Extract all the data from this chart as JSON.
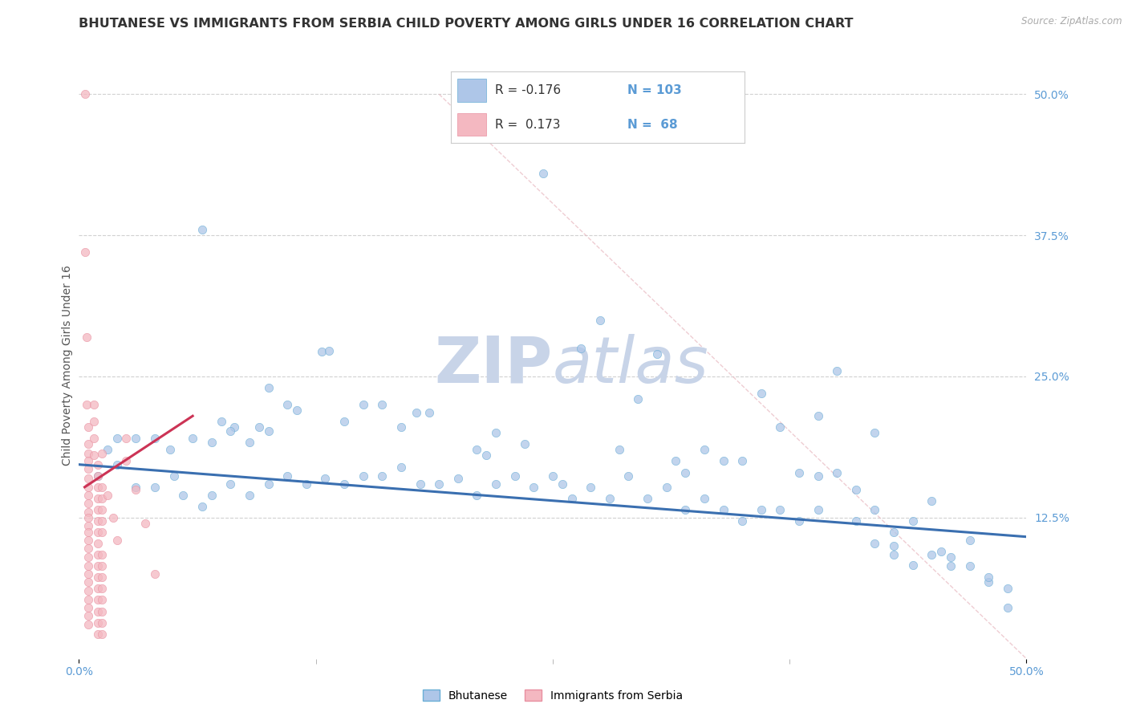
{
  "title": "BHUTANESE VS IMMIGRANTS FROM SERBIA CHILD POVERTY AMONG GIRLS UNDER 16 CORRELATION CHART",
  "source": "Source: ZipAtlas.com",
  "ylabel": "Child Poverty Among Girls Under 16",
  "xlim": [
    0.0,
    0.5
  ],
  "ylim": [
    0.0,
    0.52
  ],
  "xtick_vals": [
    0.0,
    0.5
  ],
  "xticklabels": [
    "0.0%",
    "50.0%"
  ],
  "ytick_vals": [
    0.125,
    0.25,
    0.375,
    0.5
  ],
  "yticklabels": [
    "12.5%",
    "25.0%",
    "37.5%",
    "50.0%"
  ],
  "legend_entries": [
    {
      "label": "Bhutanese",
      "color": "#aec6e8",
      "R": "-0.176",
      "N": "103"
    },
    {
      "label": "Immigrants from Serbia",
      "color": "#f4b8c1",
      "R": "0.173",
      "N": "68"
    }
  ],
  "watermark_zip": "ZIP",
  "watermark_atlas": "atlas",
  "blue_scatter": [
    [
      0.015,
      0.185
    ],
    [
      0.02,
      0.195
    ],
    [
      0.03,
      0.195
    ],
    [
      0.04,
      0.195
    ],
    [
      0.048,
      0.185
    ],
    [
      0.06,
      0.195
    ],
    [
      0.075,
      0.21
    ],
    [
      0.082,
      0.205
    ],
    [
      0.095,
      0.205
    ],
    [
      0.1,
      0.24
    ],
    [
      0.11,
      0.225
    ],
    [
      0.115,
      0.22
    ],
    [
      0.128,
      0.272
    ],
    [
      0.132,
      0.273
    ],
    [
      0.14,
      0.21
    ],
    [
      0.15,
      0.225
    ],
    [
      0.16,
      0.225
    ],
    [
      0.17,
      0.205
    ],
    [
      0.178,
      0.218
    ],
    [
      0.185,
      0.218
    ],
    [
      0.21,
      0.185
    ],
    [
      0.215,
      0.18
    ],
    [
      0.22,
      0.2
    ],
    [
      0.235,
      0.19
    ],
    [
      0.245,
      0.43
    ],
    [
      0.255,
      0.155
    ],
    [
      0.265,
      0.275
    ],
    [
      0.275,
      0.3
    ],
    [
      0.285,
      0.185
    ],
    [
      0.295,
      0.23
    ],
    [
      0.305,
      0.27
    ],
    [
      0.315,
      0.175
    ],
    [
      0.32,
      0.165
    ],
    [
      0.33,
      0.185
    ],
    [
      0.34,
      0.175
    ],
    [
      0.35,
      0.175
    ],
    [
      0.36,
      0.235
    ],
    [
      0.37,
      0.205
    ],
    [
      0.38,
      0.165
    ],
    [
      0.39,
      0.215
    ],
    [
      0.4,
      0.165
    ],
    [
      0.41,
      0.15
    ],
    [
      0.42,
      0.2
    ],
    [
      0.43,
      0.1
    ],
    [
      0.44,
      0.083
    ],
    [
      0.45,
      0.14
    ],
    [
      0.455,
      0.095
    ],
    [
      0.46,
      0.09
    ],
    [
      0.47,
      0.105
    ],
    [
      0.48,
      0.068
    ],
    [
      0.49,
      0.045
    ],
    [
      0.055,
      0.145
    ],
    [
      0.065,
      0.135
    ],
    [
      0.07,
      0.145
    ],
    [
      0.08,
      0.155
    ],
    [
      0.09,
      0.145
    ],
    [
      0.1,
      0.155
    ],
    [
      0.11,
      0.162
    ],
    [
      0.12,
      0.155
    ],
    [
      0.13,
      0.16
    ],
    [
      0.14,
      0.155
    ],
    [
      0.15,
      0.162
    ],
    [
      0.16,
      0.162
    ],
    [
      0.17,
      0.17
    ],
    [
      0.18,
      0.155
    ],
    [
      0.19,
      0.155
    ],
    [
      0.2,
      0.16
    ],
    [
      0.21,
      0.145
    ],
    [
      0.22,
      0.155
    ],
    [
      0.23,
      0.162
    ],
    [
      0.24,
      0.152
    ],
    [
      0.25,
      0.162
    ],
    [
      0.26,
      0.142
    ],
    [
      0.27,
      0.152
    ],
    [
      0.28,
      0.142
    ],
    [
      0.29,
      0.162
    ],
    [
      0.3,
      0.142
    ],
    [
      0.31,
      0.152
    ],
    [
      0.32,
      0.132
    ],
    [
      0.33,
      0.142
    ],
    [
      0.34,
      0.132
    ],
    [
      0.35,
      0.122
    ],
    [
      0.36,
      0.132
    ],
    [
      0.37,
      0.132
    ],
    [
      0.38,
      0.122
    ],
    [
      0.39,
      0.132
    ],
    [
      0.4,
      0.255
    ],
    [
      0.41,
      0.122
    ],
    [
      0.42,
      0.132
    ],
    [
      0.43,
      0.112
    ],
    [
      0.44,
      0.122
    ],
    [
      0.45,
      0.092
    ],
    [
      0.46,
      0.082
    ],
    [
      0.47,
      0.082
    ],
    [
      0.48,
      0.072
    ],
    [
      0.49,
      0.062
    ],
    [
      0.01,
      0.162
    ],
    [
      0.02,
      0.172
    ],
    [
      0.03,
      0.152
    ],
    [
      0.04,
      0.152
    ],
    [
      0.05,
      0.162
    ],
    [
      0.065,
      0.38
    ],
    [
      0.07,
      0.192
    ],
    [
      0.08,
      0.202
    ],
    [
      0.09,
      0.192
    ],
    [
      0.1,
      0.202
    ],
    [
      0.39,
      0.162
    ],
    [
      0.42,
      0.102
    ],
    [
      0.43,
      0.092
    ]
  ],
  "pink_scatter": [
    [
      0.003,
      0.5
    ],
    [
      0.003,
      0.36
    ],
    [
      0.004,
      0.285
    ],
    [
      0.004,
      0.225
    ],
    [
      0.005,
      0.205
    ],
    [
      0.005,
      0.19
    ],
    [
      0.005,
      0.182
    ],
    [
      0.005,
      0.175
    ],
    [
      0.005,
      0.168
    ],
    [
      0.005,
      0.16
    ],
    [
      0.005,
      0.152
    ],
    [
      0.005,
      0.145
    ],
    [
      0.005,
      0.138
    ],
    [
      0.005,
      0.13
    ],
    [
      0.005,
      0.125
    ],
    [
      0.005,
      0.118
    ],
    [
      0.005,
      0.112
    ],
    [
      0.005,
      0.105
    ],
    [
      0.005,
      0.098
    ],
    [
      0.005,
      0.09
    ],
    [
      0.005,
      0.082
    ],
    [
      0.005,
      0.075
    ],
    [
      0.005,
      0.068
    ],
    [
      0.005,
      0.06
    ],
    [
      0.005,
      0.052
    ],
    [
      0.005,
      0.045
    ],
    [
      0.005,
      0.038
    ],
    [
      0.005,
      0.03
    ],
    [
      0.01,
      0.172
    ],
    [
      0.01,
      0.162
    ],
    [
      0.01,
      0.152
    ],
    [
      0.01,
      0.142
    ],
    [
      0.01,
      0.132
    ],
    [
      0.01,
      0.122
    ],
    [
      0.01,
      0.112
    ],
    [
      0.01,
      0.102
    ],
    [
      0.01,
      0.092
    ],
    [
      0.01,
      0.082
    ],
    [
      0.01,
      0.072
    ],
    [
      0.01,
      0.062
    ],
    [
      0.01,
      0.052
    ],
    [
      0.01,
      0.042
    ],
    [
      0.01,
      0.032
    ],
    [
      0.01,
      0.022
    ],
    [
      0.012,
      0.182
    ],
    [
      0.012,
      0.152
    ],
    [
      0.012,
      0.142
    ],
    [
      0.012,
      0.132
    ],
    [
      0.012,
      0.122
    ],
    [
      0.012,
      0.112
    ],
    [
      0.012,
      0.092
    ],
    [
      0.012,
      0.082
    ],
    [
      0.012,
      0.072
    ],
    [
      0.012,
      0.062
    ],
    [
      0.012,
      0.052
    ],
    [
      0.012,
      0.042
    ],
    [
      0.012,
      0.032
    ],
    [
      0.012,
      0.022
    ],
    [
      0.015,
      0.145
    ],
    [
      0.018,
      0.125
    ],
    [
      0.02,
      0.105
    ],
    [
      0.025,
      0.195
    ],
    [
      0.025,
      0.175
    ],
    [
      0.03,
      0.15
    ],
    [
      0.035,
      0.12
    ],
    [
      0.04,
      0.075
    ],
    [
      0.008,
      0.225
    ],
    [
      0.008,
      0.21
    ],
    [
      0.008,
      0.195
    ],
    [
      0.008,
      0.18
    ]
  ],
  "blue_line": {
    "x0": 0.0,
    "y0": 0.172,
    "x1": 0.5,
    "y1": 0.108
  },
  "pink_line": {
    "x0": 0.003,
    "y0": 0.152,
    "x1": 0.06,
    "y1": 0.215
  },
  "diagonal_line": {
    "x0": 0.19,
    "y0": 0.5,
    "x1": 0.5,
    "y1": 0.0
  },
  "background_color": "#ffffff",
  "grid_color": "#cccccc",
  "scatter_alpha": 0.75,
  "scatter_size": 55,
  "blue_color": "#aec6e8",
  "blue_edge_color": "#6aaed6",
  "pink_color": "#f4b8c1",
  "pink_edge_color": "#e88fa0",
  "blue_line_color": "#3a6fb0",
  "pink_line_color": "#cc3355",
  "title_fontsize": 11.5,
  "axis_label_fontsize": 10,
  "tick_fontsize": 10,
  "legend_fontsize": 11,
  "watermark_color_zip": "#c8d4e8",
  "watermark_color_atlas": "#c8d4e8",
  "watermark_fontsize": 58,
  "tick_color": "#5b9bd5"
}
